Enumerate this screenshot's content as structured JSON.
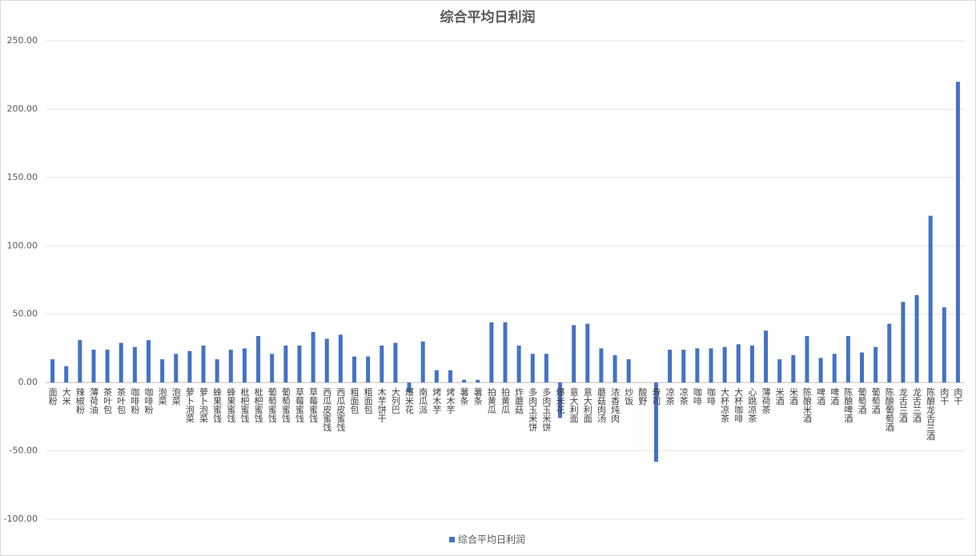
{
  "chart_data": {
    "type": "bar",
    "title": "综合平均日利润",
    "categories": [
      "面粉",
      "大米",
      "辣椒粉",
      "薄荷油",
      "茶叶包",
      "茶叶包",
      "咖啡粉",
      "咖啡粉",
      "泡菜",
      "泡菜",
      "萝卜泡菜",
      "萝卜泡菜",
      "蜂果蜜饯",
      "蜂果蜜饯",
      "枇杷蜜饯",
      "枇杷蜜饯",
      "葡萄蜜饯",
      "葡萄蜜饯",
      "草莓蜜饯",
      "草莓蜜饯",
      "西瓜皮蜜饯",
      "西瓜皮蜜饯",
      "粗面包",
      "粗面包",
      "木芋饼干",
      "大列巴",
      "爆米花",
      "南瓜派",
      "烤木芋",
      "烤木芋",
      "薯条",
      "薯条",
      "拍黄瓜",
      "拍黄瓜",
      "炸蘑菇",
      "多肉玉米饼",
      "多肉玉米饼",
      "爆米花",
      "意大利面",
      "意大利面",
      "蘑菇肉汤",
      "浓香炖肉",
      "炒饭",
      "酸野",
      "寿司",
      "凉茶",
      "凉茶",
      "咖啡",
      "咖啡",
      "大杯凉茶",
      "大杯咖啡",
      "心跳凉茶",
      "薄荷茶",
      "米酒",
      "米酒",
      "陈酿米酒",
      "啤酒",
      "啤酒",
      "陈酿啤酒",
      "葡萄酒",
      "葡萄酒",
      "陈酿葡萄酒",
      "龙舌兰酒",
      "龙舌兰酒",
      "陈酿龙舌兰酒",
      "肉干",
      "肉干"
    ],
    "series": [
      {
        "name": "综合平均日利润",
        "color": "#4472c4",
        "values": [
          17,
          12,
          31,
          24,
          24,
          29,
          26,
          31,
          17,
          21,
          23,
          27,
          17,
          24,
          25,
          34,
          21,
          27,
          27,
          37,
          32,
          35,
          19,
          19,
          27,
          29,
          -7,
          30,
          9,
          9,
          2,
          2,
          44,
          44,
          27,
          21,
          21,
          -26,
          42,
          43,
          25,
          20,
          17,
          0,
          -58,
          24,
          24,
          25,
          25,
          26,
          28,
          27,
          38,
          17,
          20,
          34,
          18,
          21,
          34,
          22,
          26,
          43,
          59,
          64,
          122,
          55,
          220
        ]
      }
    ],
    "ylim": [
      -100,
      250
    ],
    "yticks": [
      {
        "value": -100,
        "label": "-100.00"
      },
      {
        "value": -50,
        "label": "-50.00"
      },
      {
        "value": 0,
        "label": "0.00"
      },
      {
        "value": 50,
        "label": "50.00"
      },
      {
        "value": 100,
        "label": "100.00"
      },
      {
        "value": 150,
        "label": "150.00"
      },
      {
        "value": 200,
        "label": "200.00"
      },
      {
        "value": 250,
        "label": "250.00"
      }
    ],
    "grid": true
  }
}
